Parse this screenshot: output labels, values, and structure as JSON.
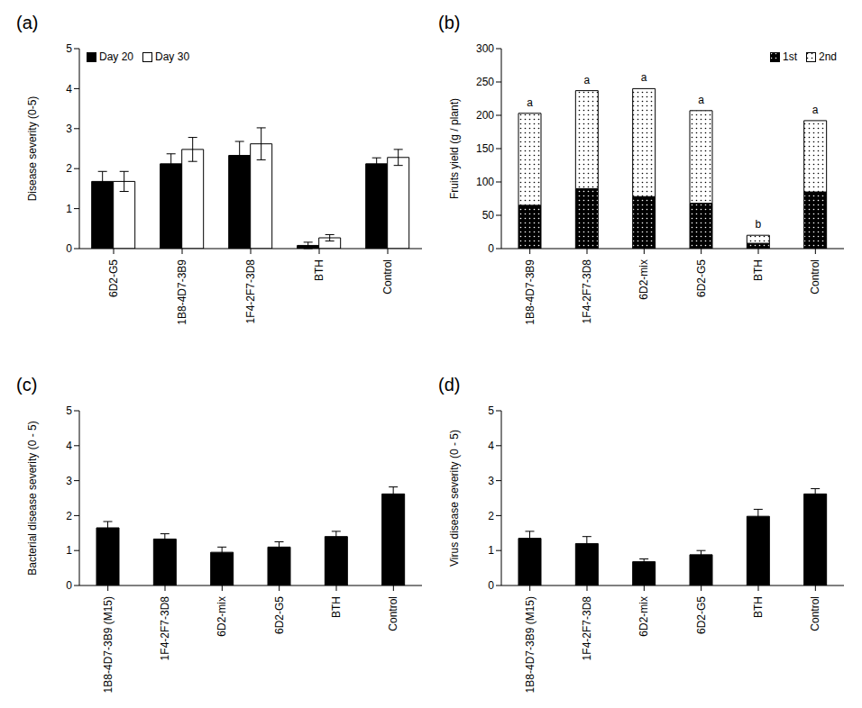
{
  "chart_data": [
    {
      "panel": "(a)",
      "type": "bar",
      "categories": [
        "6D2-G5",
        "1B8-4D7-3B9",
        "1F4-2F7-3D8",
        "BTH",
        "Control"
      ],
      "series": [
        {
          "name": "Day 20",
          "color": "#000000",
          "values": [
            1.68,
            2.12,
            2.33,
            0.08,
            2.12
          ],
          "errors": [
            0.25,
            0.25,
            0.35,
            0.08,
            0.15
          ]
        },
        {
          "name": "Day 30",
          "color": "#ffffff",
          "values": [
            1.68,
            2.48,
            2.62,
            0.27,
            2.28
          ],
          "errors": [
            0.25,
            0.3,
            0.4,
            0.08,
            0.2
          ]
        }
      ],
      "y_label": "Disease severity (0-5)",
      "ylim": [
        0,
        5
      ],
      "yticks": [
        0,
        1,
        2,
        3,
        4,
        5
      ],
      "legend": "upper left"
    },
    {
      "panel": "(b)",
      "type": "bar",
      "stacked": true,
      "categories": [
        "1B8-4D7-3B9",
        "1F4-2F7-3D8",
        "6D2-mix",
        "6D2-G5",
        "BTH",
        "Control"
      ],
      "series": [
        {
          "name": "1st",
          "color": "#000000",
          "values": [
            65,
            90,
            78,
            68,
            8,
            85
          ]
        },
        {
          "name": "2nd",
          "color": "#ffffff",
          "values": [
            138,
            147,
            162,
            139,
            12,
            107
          ]
        }
      ],
      "annotations": [
        "a",
        "a",
        "a",
        "a",
        "b",
        "a"
      ],
      "y_label": "Fruits yield (g / plant)",
      "ylim": [
        0,
        300
      ],
      "yticks": [
        0,
        50,
        100,
        150,
        200,
        250,
        300
      ],
      "legend": "upper right"
    },
    {
      "panel": "(c)",
      "type": "bar",
      "categories": [
        "1B8-4D7-3B9 (M15)",
        "1F4-2F7-3D8",
        "6D2-mix",
        "6D2-G5",
        "BTH",
        "Control"
      ],
      "values": [
        1.65,
        1.33,
        0.95,
        1.1,
        1.4,
        2.62
      ],
      "errors": [
        0.18,
        0.15,
        0.15,
        0.15,
        0.15,
        0.2
      ],
      "color": "#000000",
      "y_label": "Bacterial disease severity (0 - 5)",
      "ylim": [
        0,
        5
      ],
      "yticks": [
        0,
        1,
        2,
        3,
        4,
        5
      ]
    },
    {
      "panel": "(d)",
      "type": "bar",
      "categories": [
        "1B8-4D7-3B9 (M15)",
        "1F4-2F7-3D8",
        "6D2-mix",
        "6D2-G5",
        "BTH",
        "Control"
      ],
      "values": [
        1.35,
        1.2,
        0.68,
        0.88,
        1.98,
        2.62
      ],
      "errors": [
        0.2,
        0.2,
        0.08,
        0.12,
        0.2,
        0.15
      ],
      "color": "#000000",
      "y_label": "Virus disease severity (0 - 5)",
      "ylim": [
        0,
        5
      ],
      "yticks": [
        0,
        1,
        2,
        3,
        4,
        5
      ]
    }
  ]
}
